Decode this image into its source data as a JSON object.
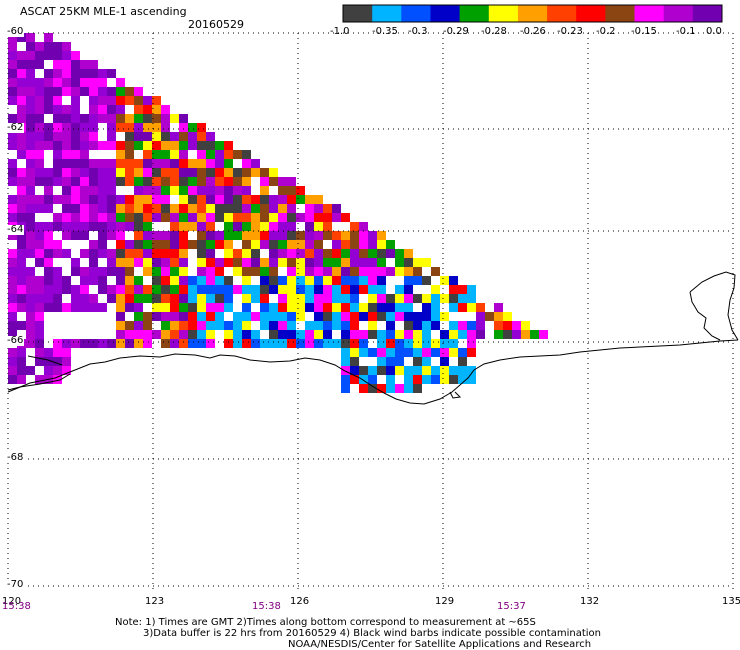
{
  "header": {
    "title": "ASCAT 25KM MLE-1 ascending",
    "date": "20160529"
  },
  "colorbar": {
    "labels": [
      "-1.0",
      "-0.35",
      "-0.3",
      "-0.29",
      "-0.28",
      "-0.26",
      "-0.23",
      "-0.2",
      "-0.15",
      "-0.1",
      "0.0"
    ],
    "colors": [
      "#404040",
      "#00b4ff",
      "#0050ff",
      "#0000c8",
      "#00a000",
      "#ffff00",
      "#ffa000",
      "#ff4000",
      "#ff0000",
      "#8b4513",
      "#ff00ff",
      "#b000d0",
      "#7000b0"
    ]
  },
  "map": {
    "lat_labels": [
      "-60",
      "-62",
      "-64",
      "-66",
      "-68",
      "-70"
    ],
    "lon_labels": [
      "120",
      "123",
      "126",
      "129",
      "132",
      "135"
    ],
    "time_labels": [
      "15:38",
      "15:38",
      "15:37"
    ]
  },
  "footer": {
    "line1": "Note: 1) Times are GMT 2)Times along bottom correspond to measurement at ~65S",
    "line2": "3)Data buffer is 22 hrs from 20160529 4) Black wind barbs indicate possible contamination",
    "line3": "NOAA/NESDIS/Center for Satellite Applications and Research"
  }
}
